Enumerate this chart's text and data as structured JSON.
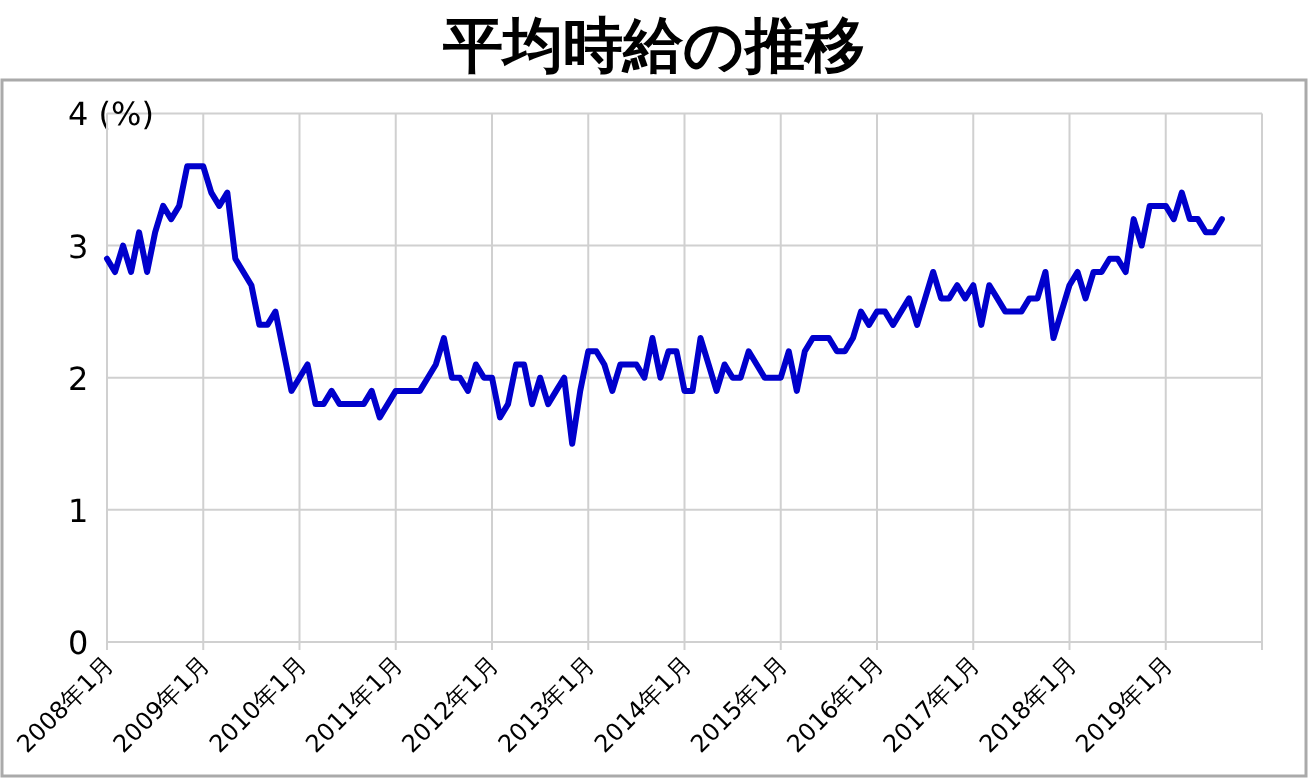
{
  "chart_data": {
    "type": "line",
    "title": "平均時給の推移",
    "x": [
      "2008-01",
      "2008-02",
      "2008-03",
      "2008-04",
      "2008-05",
      "2008-06",
      "2008-07",
      "2008-08",
      "2008-09",
      "2008-10",
      "2008-11",
      "2008-12",
      "2009-01",
      "2009-02",
      "2009-03",
      "2009-04",
      "2009-05",
      "2009-06",
      "2009-07",
      "2009-08",
      "2009-09",
      "2009-10",
      "2009-11",
      "2009-12",
      "2010-01",
      "2010-02",
      "2010-03",
      "2010-04",
      "2010-05",
      "2010-06",
      "2010-07",
      "2010-08",
      "2010-09",
      "2010-10",
      "2010-11",
      "2010-12",
      "2011-01",
      "2011-02",
      "2011-03",
      "2011-04",
      "2011-05",
      "2011-06",
      "2011-07",
      "2011-08",
      "2011-09",
      "2011-10",
      "2011-11",
      "2011-12",
      "2012-01",
      "2012-02",
      "2012-03",
      "2012-04",
      "2012-05",
      "2012-06",
      "2012-07",
      "2012-08",
      "2012-09",
      "2012-10",
      "2012-11",
      "2012-12",
      "2013-01",
      "2013-02",
      "2013-03",
      "2013-04",
      "2013-05",
      "2013-06",
      "2013-07",
      "2013-08",
      "2013-09",
      "2013-10",
      "2013-11",
      "2013-12",
      "2014-01",
      "2014-02",
      "2014-03",
      "2014-04",
      "2014-05",
      "2014-06",
      "2014-07",
      "2014-08",
      "2014-09",
      "2014-10",
      "2014-11",
      "2014-12",
      "2015-01",
      "2015-02",
      "2015-03",
      "2015-04",
      "2015-05",
      "2015-06",
      "2015-07",
      "2015-08",
      "2015-09",
      "2015-10",
      "2015-11",
      "2015-12",
      "2016-01",
      "2016-02",
      "2016-03",
      "2016-04",
      "2016-05",
      "2016-06",
      "2016-07",
      "2016-08",
      "2016-09",
      "2016-10",
      "2016-11",
      "2016-12",
      "2017-01",
      "2017-02",
      "2017-03",
      "2017-04",
      "2017-05",
      "2017-06",
      "2017-07",
      "2017-08",
      "2017-09",
      "2017-10",
      "2017-11",
      "2017-12",
      "2018-01",
      "2018-02",
      "2018-03",
      "2018-04",
      "2018-05",
      "2018-06",
      "2018-07",
      "2018-08",
      "2018-09",
      "2018-10",
      "2018-11",
      "2018-12",
      "2019-01",
      "2019-02",
      "2019-03",
      "2019-04",
      "2019-05",
      "2019-06",
      "2019-07",
      "2019-08"
    ],
    "series": [
      {
        "color": "#0000cc",
        "values": [
          2.9,
          2.8,
          3.0,
          2.8,
          3.1,
          2.8,
          3.1,
          3.3,
          3.2,
          3.3,
          3.6,
          3.6,
          3.6,
          3.4,
          3.3,
          3.4,
          2.9,
          2.8,
          2.7,
          2.4,
          2.4,
          2.5,
          2.2,
          1.9,
          2.0,
          2.1,
          1.8,
          1.8,
          1.9,
          1.8,
          1.8,
          1.8,
          1.8,
          1.9,
          1.7,
          1.8,
          1.9,
          1.9,
          1.9,
          1.9,
          2.0,
          2.1,
          2.3,
          2.0,
          2.0,
          1.9,
          2.1,
          2.0,
          2.0,
          1.7,
          1.8,
          2.1,
          2.1,
          1.8,
          2.0,
          1.8,
          1.9,
          2.0,
          1.5,
          1.9,
          2.2,
          2.2,
          2.1,
          1.9,
          2.1,
          2.1,
          2.1,
          2.0,
          2.3,
          2.0,
          2.2,
          2.2,
          1.9,
          1.9,
          2.3,
          2.1,
          1.9,
          2.1,
          2.0,
          2.0,
          2.2,
          2.1,
          2.0,
          2.0,
          2.0,
          2.2,
          1.9,
          2.2,
          2.3,
          2.3,
          2.3,
          2.2,
          2.2,
          2.3,
          2.5,
          2.4,
          2.5,
          2.5,
          2.4,
          2.5,
          2.6,
          2.4,
          2.6,
          2.8,
          2.6,
          2.6,
          2.7,
          2.6,
          2.7,
          2.4,
          2.7,
          2.6,
          2.5,
          2.5,
          2.5,
          2.6,
          2.6,
          2.8,
          2.3,
          2.5,
          2.7,
          2.8,
          2.6,
          2.8,
          2.8,
          2.9,
          2.9,
          2.8,
          3.2,
          3.0,
          3.3,
          3.3,
          3.3,
          3.2,
          3.4,
          3.2,
          3.2,
          3.1,
          3.1,
          3.2
        ]
      }
    ],
    "xlim": [
      "2008-01",
      "2020-01"
    ],
    "xticks": [
      {
        "value": "2008-01",
        "label": "2008年1月"
      },
      {
        "value": "2009-01",
        "label": "2009年1月"
      },
      {
        "value": "2010-01",
        "label": "2010年1月"
      },
      {
        "value": "2011-01",
        "label": "2011年1月"
      },
      {
        "value": "2012-01",
        "label": "2012年1月"
      },
      {
        "value": "2013-01",
        "label": "2013年1月"
      },
      {
        "value": "2014-01",
        "label": "2014年1月"
      },
      {
        "value": "2015-01",
        "label": "2015年1月"
      },
      {
        "value": "2016-01",
        "label": "2016年1月"
      },
      {
        "value": "2017-01",
        "label": "2017年1月"
      },
      {
        "value": "2018-01",
        "label": "2018年1月"
      },
      {
        "value": "2019-01",
        "label": "2019年1月"
      },
      {
        "value": "2020-01",
        "label": null
      }
    ],
    "ylim": [
      0,
      4
    ],
    "yticks": [
      0,
      1,
      2,
      3,
      {
        "value": 4,
        "label": "4 (%)"
      }
    ],
    "grid": true,
    "marker": "none",
    "line_style": "solid"
  }
}
